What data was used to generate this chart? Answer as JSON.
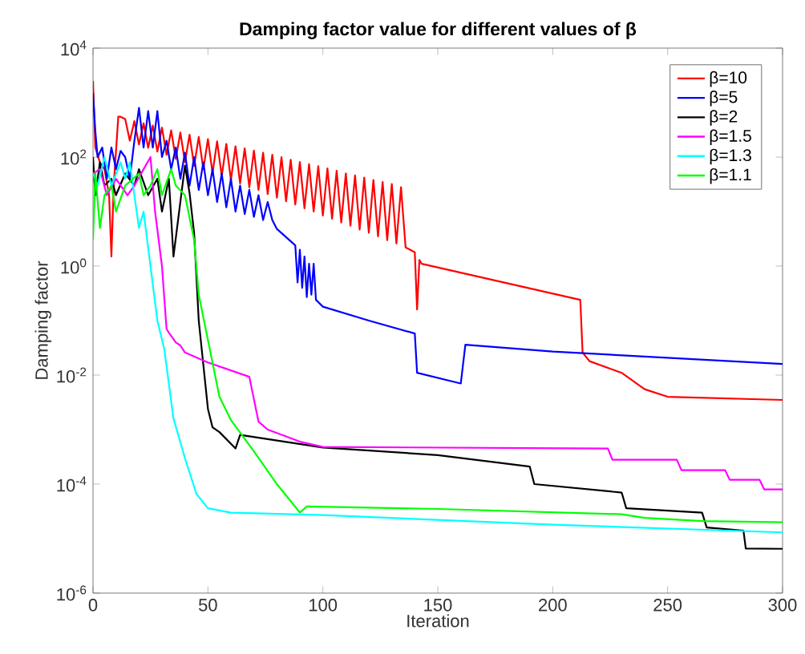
{
  "chart_data": {
    "type": "line",
    "title": "Damping factor value for different values of β",
    "xlabel": "Iteration",
    "ylabel": "Damping factor",
    "xlim": [
      0,
      300
    ],
    "xticks": [
      0,
      50,
      100,
      150,
      200,
      250,
      300
    ],
    "ylim": [
      1e-06,
      10000
    ],
    "yticks": [
      {
        "value": 1e-06,
        "label": "10$^{-6}$"
      },
      {
        "value": 0.0001,
        "label": "10$^{-4}$"
      },
      {
        "value": 0.01,
        "label": "10$^{-2}$"
      },
      {
        "value": 1,
        "label": "10$^{0}$"
      },
      {
        "value": 100,
        "label": "10$^{2}$"
      },
      {
        "value": 10000,
        "label": "10$^{4}$"
      }
    ],
    "log": "y",
    "grid": false,
    "legend": "top right",
    "line_style": "solid",
    "marker": "none",
    "series": [
      {
        "name": "β=10",
        "color": "#ff0000",
        "x": [
          0,
          1,
          3,
          5,
          7,
          8,
          9,
          11,
          12,
          14,
          16,
          18,
          20,
          22,
          24,
          26,
          28,
          30,
          32,
          34,
          36,
          38,
          40,
          42,
          44,
          46,
          48,
          50,
          52,
          54,
          56,
          58,
          60,
          62,
          64,
          66,
          68,
          70,
          72,
          74,
          76,
          78,
          80,
          82,
          84,
          86,
          88,
          90,
          92,
          94,
          96,
          98,
          100,
          102,
          104,
          106,
          108,
          110,
          112,
          114,
          116,
          118,
          120,
          122,
          124,
          126,
          128,
          130,
          132,
          134,
          136,
          140,
          141,
          142,
          143,
          212,
          213,
          216,
          230,
          240,
          250,
          300
        ],
        "values": [
          2500,
          150,
          80,
          60,
          20,
          1.5,
          30,
          550,
          550,
          500,
          200,
          457,
          170,
          417,
          148,
          380,
          126,
          347,
          110,
          309,
          93,
          282,
          81,
          257,
          69,
          234,
          60,
          214,
          51,
          195,
          45,
          174,
          38,
          158,
          33,
          145,
          28,
          132,
          25,
          120,
          21,
          110,
          18,
          100,
          15.5,
          89,
          13.5,
          81,
          11.5,
          74,
          10,
          68,
          8.5,
          62,
          7.4,
          56,
          6.3,
          50,
          5.5,
          46,
          4.7,
          42,
          4.1,
          38,
          3.5,
          35,
          3.0,
          32,
          2.6,
          28,
          2.2,
          1.8,
          0.16,
          1.3,
          1.1,
          0.24,
          0.026,
          0.018,
          0.011,
          0.0055,
          0.004,
          0.0035
        ]
      },
      {
        "name": "β=5",
        "color": "#0000ff",
        "x": [
          0,
          1,
          2,
          4,
          6,
          8,
          10,
          12,
          14,
          16,
          18,
          20,
          22,
          24,
          26,
          28,
          30,
          32,
          34,
          36,
          38,
          40,
          42,
          44,
          46,
          48,
          50,
          52,
          54,
          56,
          58,
          60,
          62,
          64,
          66,
          68,
          70,
          72,
          74,
          76,
          78,
          80,
          88,
          89,
          90,
          91,
          92,
          93,
          94,
          95,
          96,
          97,
          100,
          120,
          140,
          141,
          160,
          162,
          200,
          300
        ],
        "values": [
          1500,
          300,
          100,
          150,
          40,
          150,
          60,
          130,
          100,
          40,
          200,
          800,
          150,
          700,
          150,
          700,
          100,
          200,
          60,
          150,
          40,
          120,
          30,
          100,
          25,
          80,
          20,
          60,
          15,
          50,
          12,
          40,
          10,
          30,
          9,
          25,
          8,
          20,
          7,
          15,
          7,
          4.8,
          2.4,
          0.5,
          2,
          0.4,
          1.5,
          0.27,
          1.1,
          0.3,
          1.1,
          0.24,
          0.18,
          0.1,
          0.058,
          0.011,
          0.007,
          0.036,
          0.027,
          0.016
        ]
      },
      {
        "name": "β=2",
        "color": "#000000",
        "x": [
          0,
          1,
          3,
          5,
          8,
          10,
          14,
          18,
          20,
          24,
          28,
          30,
          33,
          35,
          40,
          42,
          44,
          46,
          50,
          52,
          55,
          62,
          64,
          100,
          150,
          190,
          192,
          230,
          232,
          265,
          267,
          283,
          284,
          300
        ],
        "values": [
          100,
          20,
          80,
          30,
          40,
          20,
          50,
          30,
          60,
          20,
          40,
          10,
          40,
          1.5,
          70,
          22,
          4,
          0.1,
          0.0024,
          0.0011,
          0.0009,
          0.00045,
          0.0008,
          0.00047,
          0.00034,
          0.00021,
          0.0001,
          7e-05,
          3.6e-05,
          3e-05,
          1.6e-05,
          1.4e-05,
          6.6e-06,
          6.5e-06
        ]
      },
      {
        "name": "β=1.5",
        "color": "#ff00ff",
        "x": [
          0,
          3,
          6,
          10,
          15,
          18,
          22,
          25,
          27,
          30,
          32,
          33,
          36,
          38,
          40,
          50,
          68,
          72,
          76,
          90,
          100,
          224,
          226,
          254,
          256,
          275,
          277,
          290,
          292,
          300
        ],
        "values": [
          50,
          60,
          20,
          40,
          20,
          30,
          60,
          100,
          10,
          1,
          0.07,
          0.06,
          0.04,
          0.035,
          0.026,
          0.017,
          0.0093,
          0.0014,
          0.001,
          0.0006,
          0.00048,
          0.00045,
          0.00028,
          0.00028,
          0.00018,
          0.00018,
          0.00012,
          0.00012,
          8e-05,
          8e-05
        ]
      },
      {
        "name": "β=1.3",
        "color": "#00ffff",
        "x": [
          0,
          2,
          5,
          8,
          12,
          14,
          16,
          18,
          20,
          22,
          25,
          28,
          31,
          35,
          40,
          45,
          50,
          60,
          100,
          200,
          300
        ],
        "values": [
          50,
          30,
          100,
          30,
          80,
          40,
          80,
          20,
          5,
          10,
          1,
          0.1,
          0.03,
          0.0016,
          0.0003,
          6.6e-05,
          3.6e-05,
          3e-05,
          2.7e-05,
          1.8e-05,
          1.3e-05
        ]
      },
      {
        "name": "β=1.1",
        "color": "#00ff00",
        "x": [
          0,
          1,
          3,
          5,
          8,
          10,
          14,
          20,
          22,
          25,
          28,
          30,
          34,
          36,
          40,
          44,
          46,
          55,
          60,
          70,
          80,
          90,
          93,
          150,
          230,
          240,
          265,
          300
        ],
        "values": [
          3,
          50,
          5,
          20,
          30,
          10,
          30,
          50,
          20,
          30,
          60,
          20,
          60,
          30,
          20,
          3,
          0.3,
          0.004,
          0.0015,
          0.0004,
          0.0001,
          3e-05,
          3.9e-05,
          3.5e-05,
          2.8e-05,
          2.4e-05,
          2.1e-05,
          2e-05
        ]
      }
    ]
  }
}
